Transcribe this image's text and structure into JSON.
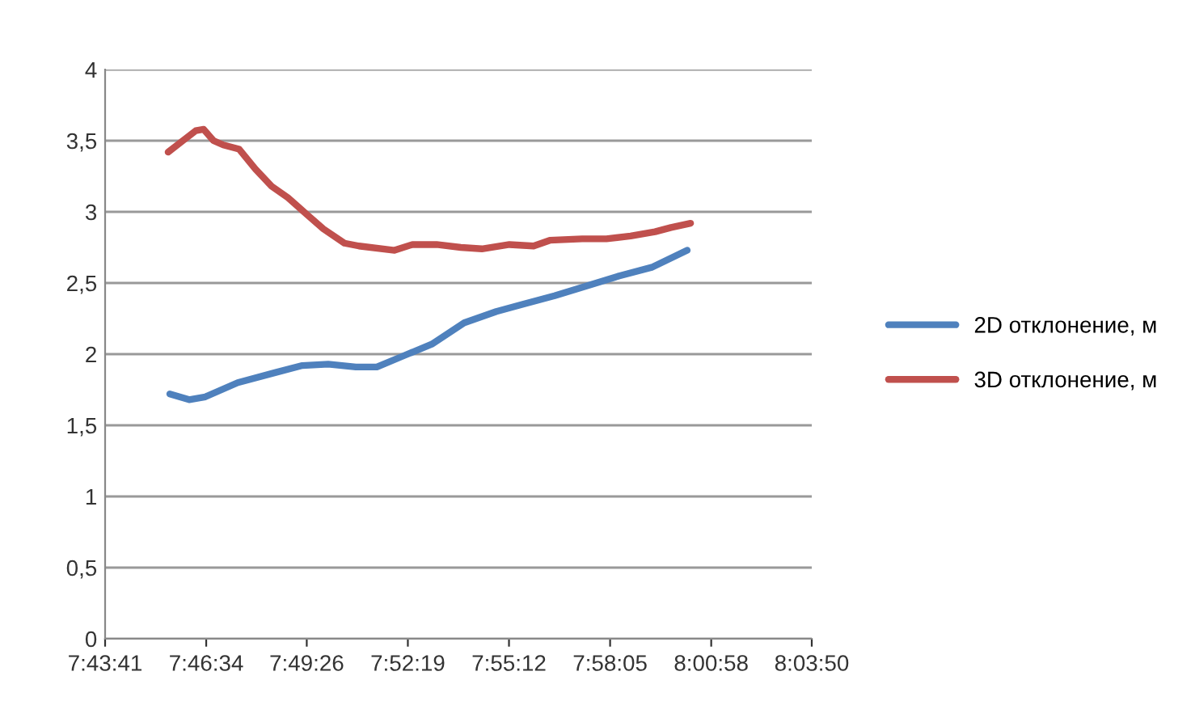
{
  "chart_data": {
    "type": "line",
    "x": [
      7.758,
      7.765,
      7.7711,
      7.7749,
      7.7796,
      7.7842,
      7.7918,
      7.7995,
      7.8072,
      7.8149,
      7.8241,
      7.8318,
      7.8418,
      7.8487,
      7.8656,
      7.8741,
      7.8856,
      7.8971,
      7.9071,
      7.9202,
      7.9317,
      7.9394,
      7.9548,
      7.9663,
      7.9778,
      7.9894,
      7.997,
      8.0063
    ],
    "series": [
      {
        "name": "2D отклонение, м",
        "color": "#4f81bd",
        "x": [
          7.7588,
          7.768,
          7.7757,
          7.7911,
          7.8088,
          7.8218,
          7.8341,
          7.8472,
          7.8572,
          7.8702,
          7.8833,
          7.8987,
          7.914,
          7.9263,
          7.9417,
          7.9571,
          7.9724,
          7.9878,
          8.0047
        ],
        "values": [
          1.72,
          1.68,
          1.7,
          1.8,
          1.87,
          1.92,
          1.93,
          1.91,
          1.91,
          1.99,
          2.07,
          2.22,
          2.3,
          2.35,
          2.41,
          2.48,
          2.55,
          2.61,
          2.73
        ]
      },
      {
        "name": "3D отклонение, м",
        "color": "#c0504d",
        "values": [
          3.42,
          3.5,
          3.57,
          3.58,
          3.5,
          3.47,
          3.44,
          3.3,
          3.18,
          3.1,
          2.98,
          2.88,
          2.78,
          2.76,
          2.73,
          2.77,
          2.77,
          2.75,
          2.74,
          2.77,
          2.76,
          2.8,
          2.81,
          2.81,
          2.83,
          2.86,
          2.89,
          2.92
        ]
      }
    ],
    "xlim": [
      7.72806,
      8.06389
    ],
    "xticks": [
      {
        "value": 7.72806,
        "label": "7:43:41"
      },
      {
        "value": 7.77611,
        "label": "7:46:34"
      },
      {
        "value": 7.82389,
        "label": "7:49:26"
      },
      {
        "value": 7.87194,
        "label": "7:52:19"
      },
      {
        "value": 7.92,
        "label": "7:55:12"
      },
      {
        "value": 7.96806,
        "label": "7:58:05"
      },
      {
        "value": 8.01611,
        "label": "8:00:58"
      },
      {
        "value": 8.06389,
        "label": "8:03:50"
      }
    ],
    "ylim": [
      0,
      4
    ],
    "yticks": [
      {
        "value": 0,
        "label": "0"
      },
      {
        "value": 0.5,
        "label": "0,5"
      },
      {
        "value": 1,
        "label": "1"
      },
      {
        "value": 1.5,
        "label": "1,5"
      },
      {
        "value": 2,
        "label": "2"
      },
      {
        "value": 2.5,
        "label": "2,5"
      },
      {
        "value": 3,
        "label": "3"
      },
      {
        "value": 3.5,
        "label": "3,5"
      },
      {
        "value": 4,
        "label": "4"
      }
    ],
    "grid": "y",
    "legend": "right",
    "marker": "none",
    "line_style": "solid"
  }
}
